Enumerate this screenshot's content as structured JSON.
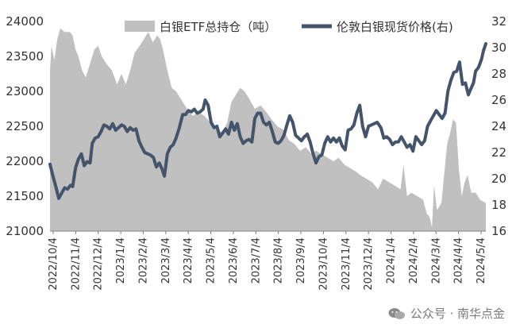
{
  "chart_data": {
    "type": "area+line",
    "legend_position": "top-right",
    "grid": false,
    "left_axis": {
      "min": 21000,
      "max": 24000,
      "ticks": [
        21000,
        21500,
        22000,
        22500,
        23000,
        23500,
        24000
      ]
    },
    "right_axis": {
      "min": 16,
      "max": 32,
      "ticks": [
        16,
        18,
        20,
        22,
        24,
        26,
        28,
        30,
        32
      ]
    },
    "x_tick_labels": [
      "2022/10/4",
      "2022/11/4",
      "2022/12/4",
      "2023/1/4",
      "2023/2/4",
      "2023/3/4",
      "2023/4/4",
      "2023/5/4",
      "2023/6/4",
      "2023/7/4",
      "2023/8/4",
      "2023/9/4",
      "2023/10/4",
      "2023/11/4",
      "2023/12/4",
      "2024/1/4",
      "2024/2/4",
      "2024/3/4",
      "2024/4/4",
      "2024/5/4"
    ],
    "x_range": [
      "2022-10-04",
      "2024-05-24"
    ],
    "series": [
      {
        "name": "白银ETF总持仓（吨）",
        "axis": "left",
        "style": "area",
        "color": "#c0c0c0",
        "points": [
          [
            "2022-10-04",
            23300
          ],
          [
            "2022-10-06",
            23650
          ],
          [
            "2022-10-10",
            23450
          ],
          [
            "2022-10-14",
            23750
          ],
          [
            "2022-10-18",
            23900
          ],
          [
            "2022-10-24",
            23850
          ],
          [
            "2022-10-31",
            23850
          ],
          [
            "2022-11-04",
            23800
          ],
          [
            "2022-11-08",
            23600
          ],
          [
            "2022-11-12",
            23500
          ],
          [
            "2022-11-17",
            23300
          ],
          [
            "2022-11-22",
            23200
          ],
          [
            "2022-11-28",
            23400
          ],
          [
            "2022-12-04",
            23600
          ],
          [
            "2022-12-09",
            23650
          ],
          [
            "2022-12-14",
            23500
          ],
          [
            "2022-12-20",
            23400
          ],
          [
            "2022-12-28",
            23300
          ],
          [
            "2023-01-04",
            23100
          ],
          [
            "2023-01-10",
            23250
          ],
          [
            "2023-01-16",
            23100
          ],
          [
            "2023-01-22",
            23300
          ],
          [
            "2023-01-28",
            23550
          ],
          [
            "2023-02-04",
            23650
          ],
          [
            "2023-02-10",
            23750
          ],
          [
            "2023-02-16",
            23850
          ],
          [
            "2023-02-22",
            23700
          ],
          [
            "2023-02-28",
            23800
          ],
          [
            "2023-03-04",
            23750
          ],
          [
            "2023-03-08",
            23600
          ],
          [
            "2023-03-14",
            23300
          ],
          [
            "2023-03-20",
            23050
          ],
          [
            "2023-03-26",
            23000
          ],
          [
            "2023-04-04",
            22850
          ],
          [
            "2023-04-10",
            22750
          ],
          [
            "2023-04-18",
            22650
          ],
          [
            "2023-04-26",
            22700
          ],
          [
            "2023-05-04",
            22650
          ],
          [
            "2023-05-12",
            22550
          ],
          [
            "2023-05-20",
            22500
          ],
          [
            "2023-05-28",
            22400
          ],
          [
            "2023-06-04",
            22550
          ],
          [
            "2023-06-10",
            22850
          ],
          [
            "2023-06-16",
            22950
          ],
          [
            "2023-06-22",
            23050
          ],
          [
            "2023-06-28",
            23000
          ],
          [
            "2023-07-04",
            22900
          ],
          [
            "2023-07-12",
            22750
          ],
          [
            "2023-07-20",
            22800
          ],
          [
            "2023-07-28",
            22700
          ],
          [
            "2023-08-04",
            22600
          ],
          [
            "2023-08-12",
            22500
          ],
          [
            "2023-08-20",
            22450
          ],
          [
            "2023-08-28",
            22300
          ],
          [
            "2023-09-04",
            22250
          ],
          [
            "2023-09-12",
            22150
          ],
          [
            "2023-09-20",
            22200
          ],
          [
            "2023-09-28",
            22100
          ],
          [
            "2023-10-04",
            22150
          ],
          [
            "2023-10-12",
            22100
          ],
          [
            "2023-10-20",
            22050
          ],
          [
            "2023-10-28",
            22000
          ],
          [
            "2023-11-04",
            22050
          ],
          [
            "2023-11-12",
            21950
          ],
          [
            "2023-11-20",
            21900
          ],
          [
            "2023-11-28",
            21850
          ],
          [
            "2023-12-04",
            21800
          ],
          [
            "2023-12-12",
            21750
          ],
          [
            "2023-12-20",
            21700
          ],
          [
            "2023-12-28",
            21600
          ],
          [
            "2024-01-04",
            21750
          ],
          [
            "2024-01-12",
            21700
          ],
          [
            "2024-01-20",
            21650
          ],
          [
            "2024-01-28",
            21600
          ],
          [
            "2024-02-01",
            21950
          ],
          [
            "2024-02-06",
            21500
          ],
          [
            "2024-02-12",
            21550
          ],
          [
            "2024-02-20",
            21500
          ],
          [
            "2024-02-28",
            21450
          ],
          [
            "2024-03-04",
            21250
          ],
          [
            "2024-03-08",
            21200
          ],
          [
            "2024-03-11",
            21050
          ],
          [
            "2024-03-14",
            21650
          ],
          [
            "2024-03-18",
            21300
          ],
          [
            "2024-03-24",
            21400
          ],
          [
            "2024-04-01",
            22250
          ],
          [
            "2024-04-05",
            22400
          ],
          [
            "2024-04-09",
            22600
          ],
          [
            "2024-04-13",
            22550
          ],
          [
            "2024-04-17",
            21900
          ],
          [
            "2024-04-21",
            21500
          ],
          [
            "2024-04-25",
            21700
          ],
          [
            "2024-04-29",
            21800
          ],
          [
            "2024-05-04",
            21550
          ],
          [
            "2024-05-10",
            21550
          ],
          [
            "2024-05-16",
            21450
          ],
          [
            "2024-05-24",
            21400
          ]
        ]
      },
      {
        "name": "伦敦白银现货价格(右)",
        "axis": "right",
        "style": "line",
        "color": "#44546a",
        "points": [
          [
            "2022-10-04",
            21.1
          ],
          [
            "2022-10-08",
            20.2
          ],
          [
            "2022-10-12",
            19.4
          ],
          [
            "2022-10-16",
            18.5
          ],
          [
            "2022-10-20",
            18.9
          ],
          [
            "2022-10-24",
            19.3
          ],
          [
            "2022-10-28",
            19.2
          ],
          [
            "2022-11-01",
            19.5
          ],
          [
            "2022-11-04",
            19.4
          ],
          [
            "2022-11-08",
            20.8
          ],
          [
            "2022-11-12",
            21.5
          ],
          [
            "2022-11-16",
            21.9
          ],
          [
            "2022-11-20",
            21.0
          ],
          [
            "2022-11-24",
            21.3
          ],
          [
            "2022-11-28",
            21.2
          ],
          [
            "2022-12-01",
            22.7
          ],
          [
            "2022-12-05",
            23.1
          ],
          [
            "2022-12-09",
            23.2
          ],
          [
            "2022-12-13",
            23.6
          ],
          [
            "2022-12-17",
            24.1
          ],
          [
            "2022-12-21",
            24.0
          ],
          [
            "2022-12-25",
            23.8
          ],
          [
            "2022-12-29",
            24.2
          ],
          [
            "2023-01-02",
            23.7
          ],
          [
            "2023-01-06",
            23.9
          ],
          [
            "2023-01-10",
            24.1
          ],
          [
            "2023-01-14",
            24.0
          ],
          [
            "2023-01-18",
            23.6
          ],
          [
            "2023-01-22",
            23.9
          ],
          [
            "2023-01-26",
            23.7
          ],
          [
            "2023-01-30",
            23.8
          ],
          [
            "2023-02-03",
            22.9
          ],
          [
            "2023-02-07",
            22.4
          ],
          [
            "2023-02-11",
            22.0
          ],
          [
            "2023-02-15",
            21.9
          ],
          [
            "2023-02-19",
            21.8
          ],
          [
            "2023-02-23",
            21.6
          ],
          [
            "2023-02-27",
            20.9
          ],
          [
            "2023-03-03",
            21.2
          ],
          [
            "2023-03-07",
            20.7
          ],
          [
            "2023-03-10",
            20.2
          ],
          [
            "2023-03-14",
            21.9
          ],
          [
            "2023-03-18",
            22.4
          ],
          [
            "2023-03-22",
            22.6
          ],
          [
            "2023-03-26",
            23.1
          ],
          [
            "2023-03-30",
            23.8
          ],
          [
            "2023-04-04",
            24.9
          ],
          [
            "2023-04-08",
            24.9
          ],
          [
            "2023-04-12",
            25.2
          ],
          [
            "2023-04-16",
            25.1
          ],
          [
            "2023-04-20",
            25.3
          ],
          [
            "2023-04-24",
            25.0
          ],
          [
            "2023-04-28",
            25.1
          ],
          [
            "2023-05-02",
            25.3
          ],
          [
            "2023-05-05",
            26.0
          ],
          [
            "2023-05-09",
            25.6
          ],
          [
            "2023-05-13",
            24.3
          ],
          [
            "2023-05-17",
            23.9
          ],
          [
            "2023-05-21",
            24.0
          ],
          [
            "2023-05-25",
            23.2
          ],
          [
            "2023-05-29",
            23.5
          ],
          [
            "2023-06-02",
            23.8
          ],
          [
            "2023-06-06",
            23.4
          ],
          [
            "2023-06-10",
            24.3
          ],
          [
            "2023-06-14",
            23.7
          ],
          [
            "2023-06-18",
            24.2
          ],
          [
            "2023-06-22",
            23.2
          ],
          [
            "2023-06-26",
            22.7
          ],
          [
            "2023-06-30",
            22.9
          ],
          [
            "2023-07-04",
            23.0
          ],
          [
            "2023-07-08",
            22.8
          ],
          [
            "2023-07-12",
            24.6
          ],
          [
            "2023-07-16",
            25.0
          ],
          [
            "2023-07-20",
            25.0
          ],
          [
            "2023-07-24",
            24.3
          ],
          [
            "2023-07-28",
            24.1
          ],
          [
            "2023-08-01",
            24.3
          ],
          [
            "2023-08-05",
            23.6
          ],
          [
            "2023-08-09",
            22.8
          ],
          [
            "2023-08-13",
            22.7
          ],
          [
            "2023-08-17",
            22.9
          ],
          [
            "2023-08-21",
            23.3
          ],
          [
            "2023-08-25",
            24.1
          ],
          [
            "2023-08-29",
            24.8
          ],
          [
            "2023-09-02",
            24.3
          ],
          [
            "2023-09-06",
            23.3
          ],
          [
            "2023-09-10",
            23.1
          ],
          [
            "2023-09-14",
            22.9
          ],
          [
            "2023-09-18",
            23.2
          ],
          [
            "2023-09-22",
            23.4
          ],
          [
            "2023-09-26",
            22.8
          ],
          [
            "2023-09-30",
            21.9
          ],
          [
            "2023-10-04",
            21.2
          ],
          [
            "2023-10-08",
            21.7
          ],
          [
            "2023-10-12",
            21.8
          ],
          [
            "2023-10-16",
            22.7
          ],
          [
            "2023-10-20",
            23.2
          ],
          [
            "2023-10-24",
            22.8
          ],
          [
            "2023-10-28",
            23.1
          ],
          [
            "2023-11-01",
            22.8
          ],
          [
            "2023-11-05",
            23.1
          ],
          [
            "2023-11-09",
            22.5
          ],
          [
            "2023-11-13",
            22.2
          ],
          [
            "2023-11-17",
            23.7
          ],
          [
            "2023-11-21",
            23.8
          ],
          [
            "2023-11-25",
            24.1
          ],
          [
            "2023-11-29",
            25.0
          ],
          [
            "2023-12-03",
            25.6
          ],
          [
            "2023-12-07",
            24.0
          ],
          [
            "2023-12-11",
            23.2
          ],
          [
            "2023-12-15",
            24.0
          ],
          [
            "2023-12-19",
            24.1
          ],
          [
            "2023-12-23",
            24.2
          ],
          [
            "2023-12-27",
            24.3
          ],
          [
            "2024-01-01",
            23.9
          ],
          [
            "2024-01-05",
            23.1
          ],
          [
            "2024-01-09",
            23.2
          ],
          [
            "2024-01-13",
            23.0
          ],
          [
            "2024-01-17",
            22.6
          ],
          [
            "2024-01-21",
            22.8
          ],
          [
            "2024-01-25",
            22.8
          ],
          [
            "2024-01-29",
            23.2
          ],
          [
            "2024-02-02",
            22.8
          ],
          [
            "2024-02-06",
            22.4
          ],
          [
            "2024-02-10",
            22.6
          ],
          [
            "2024-02-14",
            22.1
          ],
          [
            "2024-02-18",
            23.2
          ],
          [
            "2024-02-22",
            22.9
          ],
          [
            "2024-02-26",
            22.6
          ],
          [
            "2024-03-01",
            22.9
          ],
          [
            "2024-03-05",
            24.0
          ],
          [
            "2024-03-09",
            24.4
          ],
          [
            "2024-03-13",
            24.8
          ],
          [
            "2024-03-17",
            25.2
          ],
          [
            "2024-03-21",
            24.9
          ],
          [
            "2024-03-25",
            24.6
          ],
          [
            "2024-03-29",
            25.0
          ],
          [
            "2024-04-02",
            26.7
          ],
          [
            "2024-04-06",
            27.5
          ],
          [
            "2024-04-10",
            28.1
          ],
          [
            "2024-04-14",
            28.2
          ],
          [
            "2024-04-18",
            28.9
          ],
          [
            "2024-04-22",
            27.2
          ],
          [
            "2024-04-26",
            27.3
          ],
          [
            "2024-04-30",
            26.4
          ],
          [
            "2024-05-03",
            26.8
          ],
          [
            "2024-05-07",
            27.3
          ],
          [
            "2024-05-10",
            28.2
          ],
          [
            "2024-05-14",
            28.5
          ],
          [
            "2024-05-18",
            29.1
          ],
          [
            "2024-05-21",
            29.8
          ],
          [
            "2024-05-24",
            30.3
          ]
        ]
      }
    ]
  },
  "watermark": {
    "text": "公众号 · 南华点金",
    "icon": "wechat-icon"
  }
}
